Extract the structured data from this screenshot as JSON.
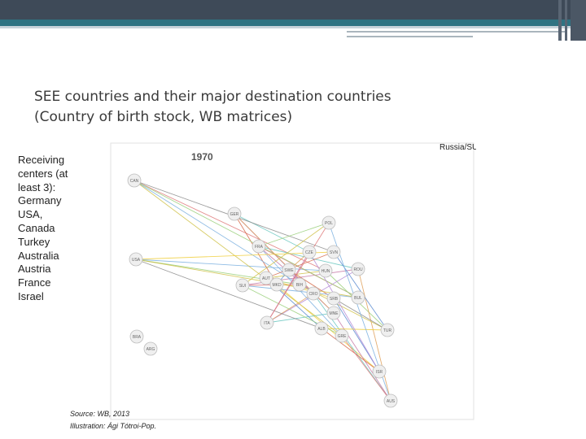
{
  "title": {
    "line1": "SEE countries and their major destination countries",
    "line2": "(Country of birth stock,  WB matrices)"
  },
  "sidebar": {
    "lines": [
      "Receiving",
      "centers (at",
      "least 3):",
      "Germany",
      "USA,",
      "Canada",
      "Turkey",
      "Australia",
      "Austria",
      "France",
      "Israel"
    ]
  },
  "network": {
    "year": "1970",
    "annotation": "Russia/SU?",
    "nodes": [
      "CAN",
      "GER",
      "POL",
      "FRA",
      "CZE",
      "SVN",
      "USA",
      "AUT",
      "SUI",
      "SWE",
      "HUN",
      "ROU",
      "MKD",
      "BIH",
      "CRO",
      "SRB",
      "BUL",
      "MNE",
      "ITA",
      "ALB",
      "GRE",
      "TUR",
      "BRA",
      "ARG",
      "ISR",
      "AUS"
    ]
  },
  "footer": {
    "source": "Source: WB, 2013",
    "illustration": "Illustration: Ági Tótroi-Pop."
  }
}
